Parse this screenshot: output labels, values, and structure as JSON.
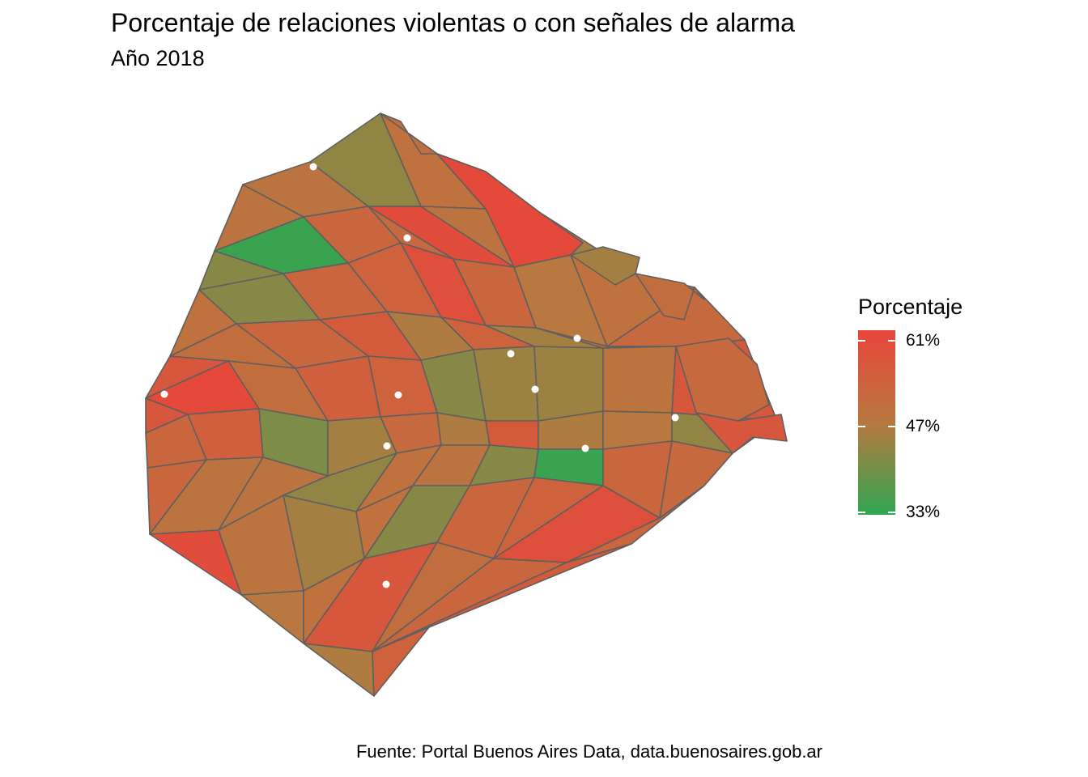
{
  "title": "Porcentaje de relaciones violentas o con señales de alarma",
  "subtitle": "Año 2018",
  "caption": "Fuente: Portal Buenos Aires Data, data.buenosaires.gob.ar",
  "legend": {
    "title": "Porcentaje",
    "min_color": "#2fa651",
    "mid_color": "#b8783f",
    "max_color": "#e8453a",
    "ticks": [
      {
        "label": "61%",
        "value": 61
      },
      {
        "label": "47%",
        "value": 47
      },
      {
        "label": "33%",
        "value": 33
      }
    ]
  },
  "map": {
    "border_color": "#5f5f5f",
    "marker_color": "#ffffff",
    "barrio_percentages": [
      48,
      48,
      43,
      49,
      48,
      42,
      34,
      52,
      51,
      59,
      48,
      45,
      49,
      42,
      52,
      53,
      58,
      52,
      47,
      49,
      56,
      50,
      52,
      55,
      46,
      53,
      45,
      50,
      51,
      56,
      60,
      50,
      54,
      53,
      42,
      44,
      44,
      48,
      56,
      52,
      54,
      41,
      45,
      51,
      46,
      55,
      46,
      47,
      43,
      52
    ]
  }
}
